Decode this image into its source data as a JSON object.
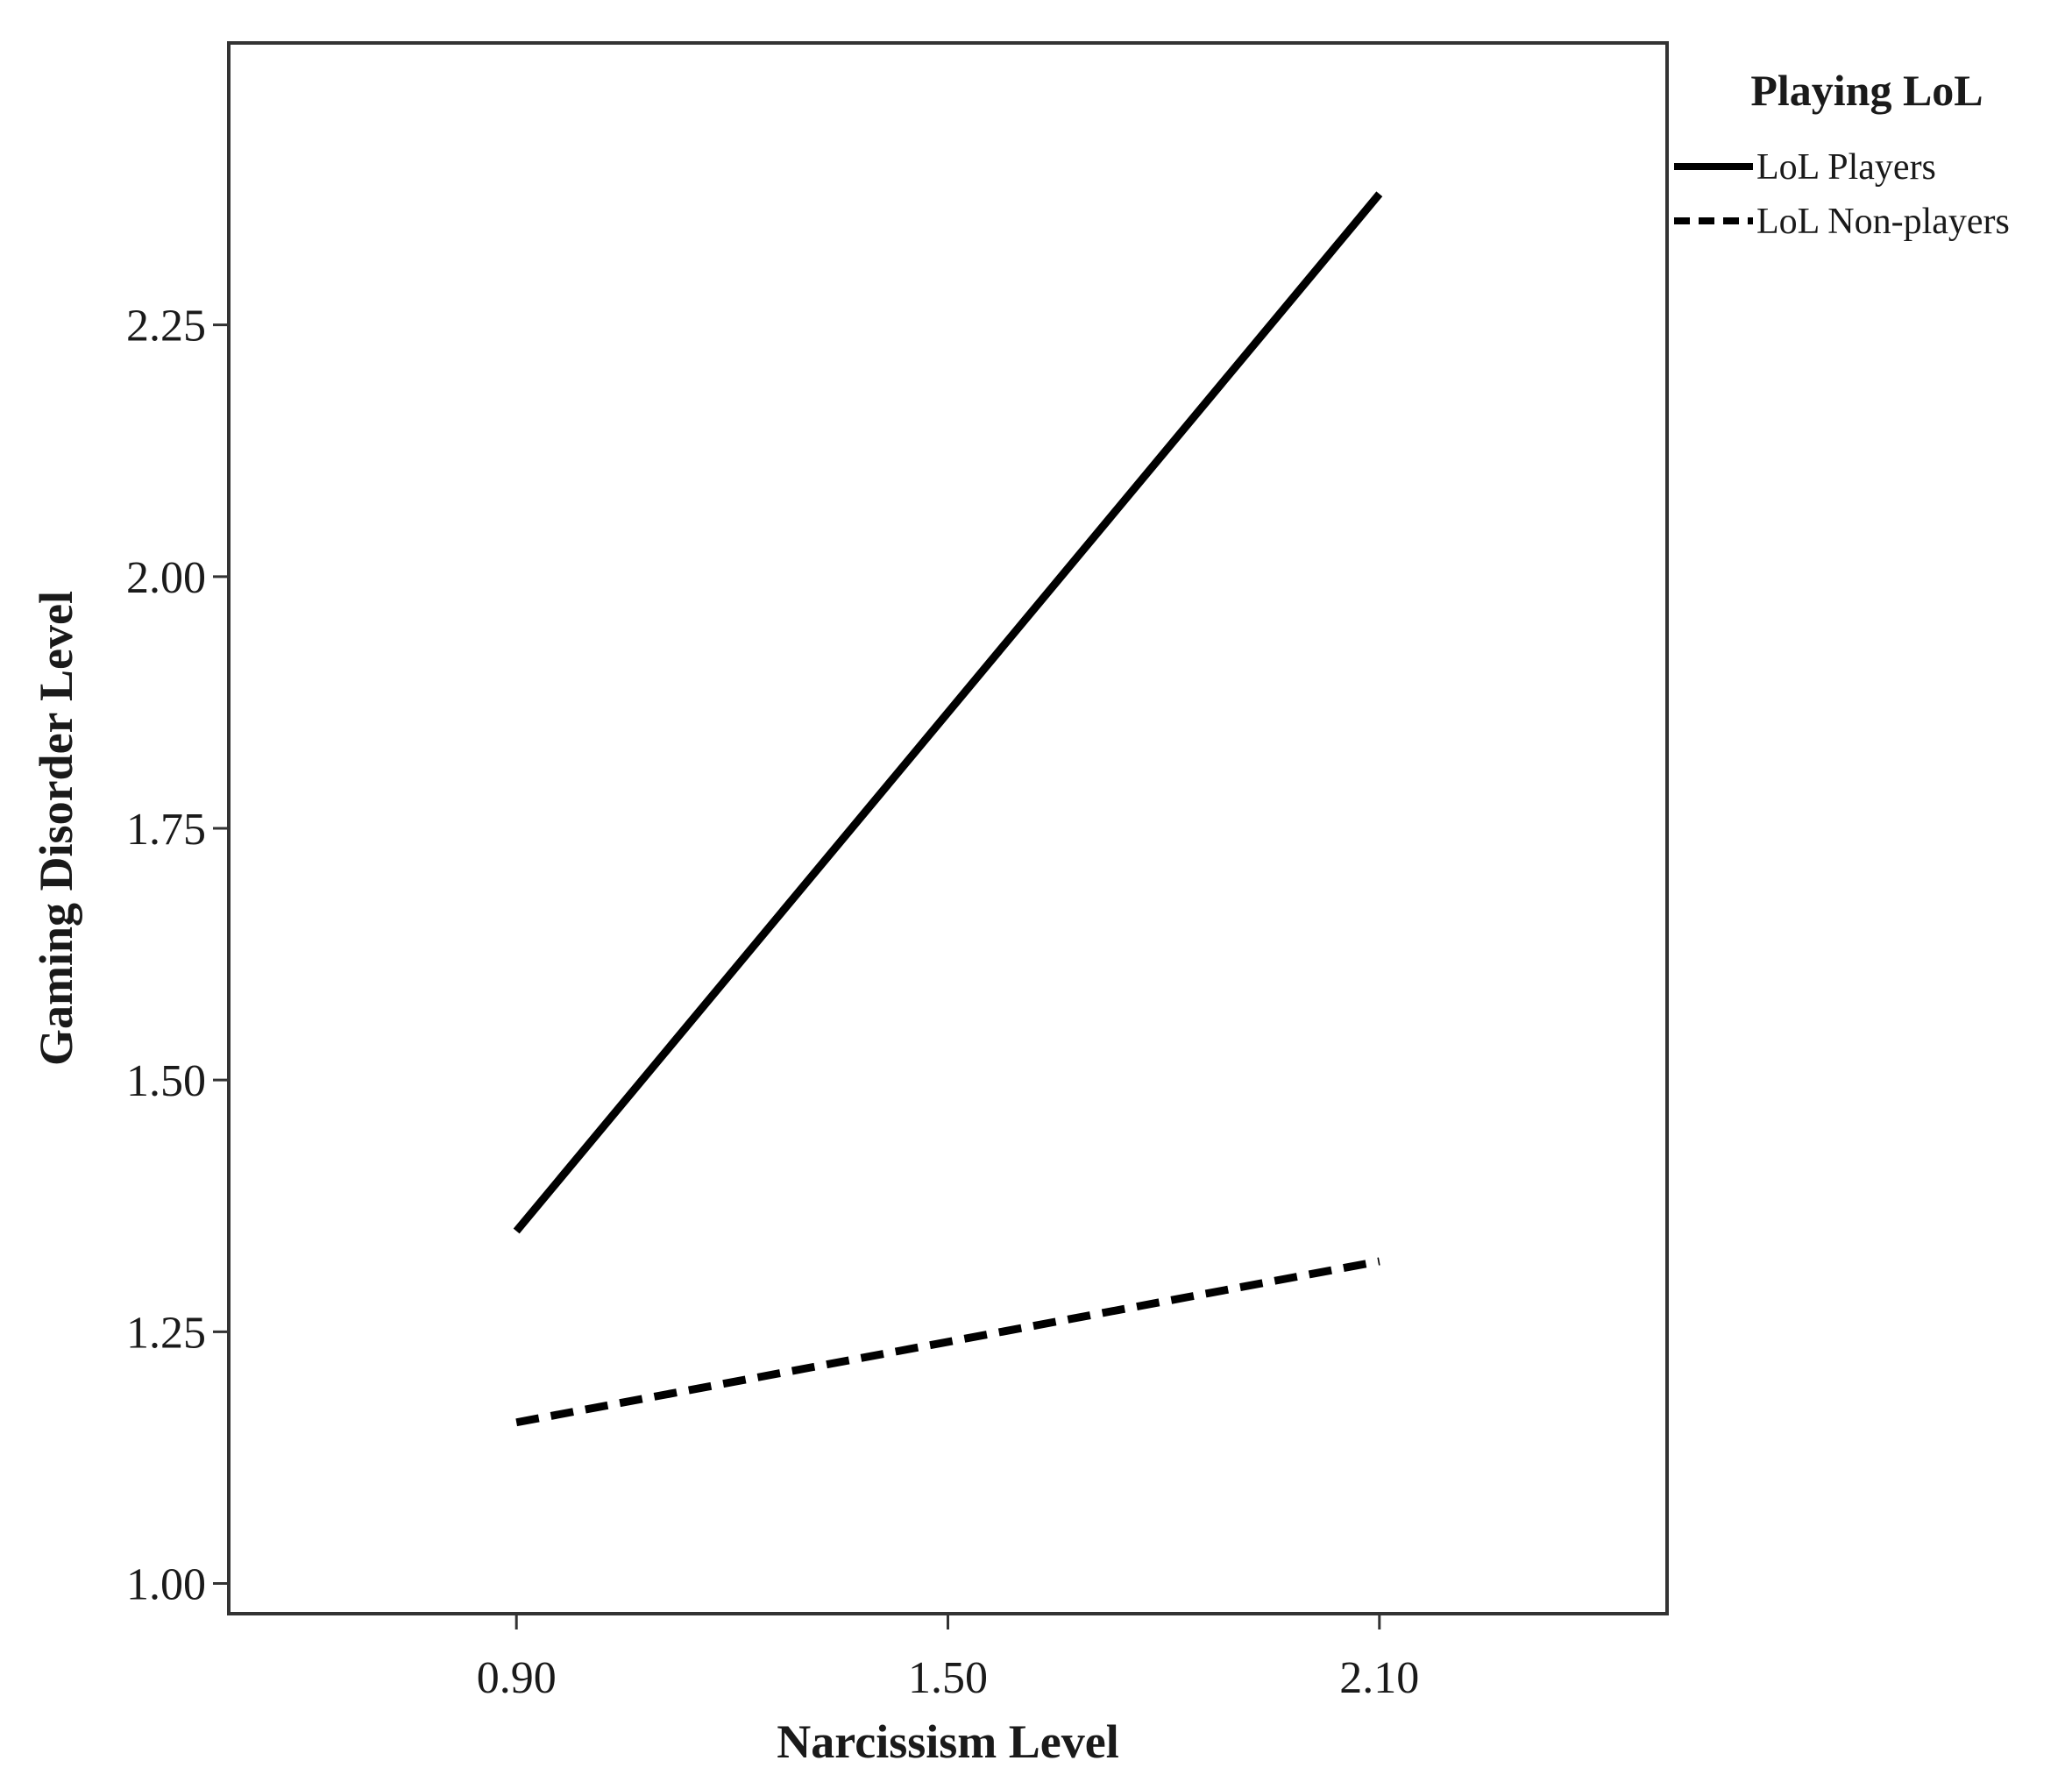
{
  "chart_data": {
    "type": "line",
    "title": "",
    "xlabel": "Narcissism Level",
    "ylabel": "Gaming Disorder Level",
    "x": [
      0.9,
      2.1
    ],
    "x_ticks": [
      "0.90",
      "1.50",
      "2.10"
    ],
    "y_ticks": [
      "1.00",
      "1.25",
      "1.50",
      "1.75",
      "2.00",
      "2.25"
    ],
    "xlim": [
      0.5,
      2.5
    ],
    "ylim": [
      0.97,
      2.53
    ],
    "grid": false,
    "legend": {
      "title": "Playing LoL",
      "placement": "top-right-outside"
    },
    "series": [
      {
        "name": "LoL Players",
        "values": [
          1.35,
          2.38
        ],
        "line_style": "solid",
        "color": "#000000"
      },
      {
        "name": "LoL Non-players",
        "values": [
          1.16,
          1.32
        ],
        "line_style": "dashed",
        "color": "#000000"
      }
    ]
  }
}
